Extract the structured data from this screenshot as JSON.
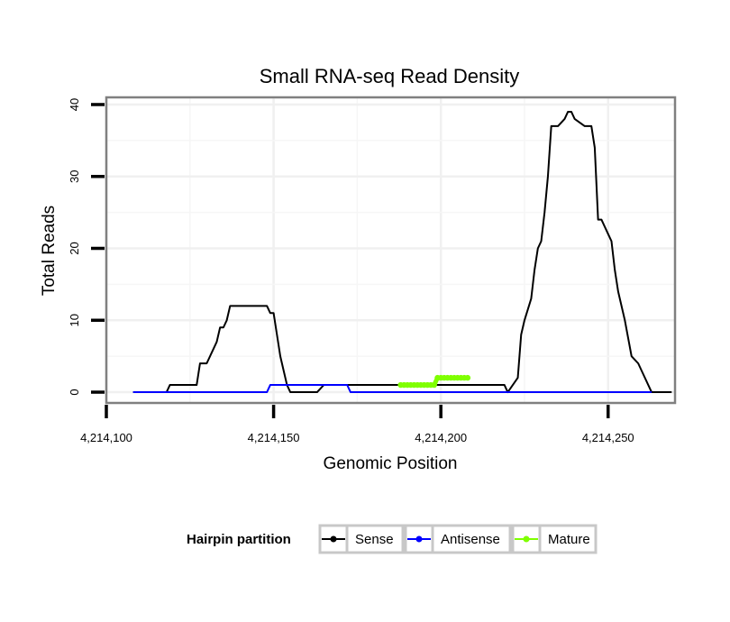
{
  "chart_data": {
    "type": "line",
    "title": "Small RNA-seq Read Density",
    "xlabel": "Genomic Position",
    "ylabel": "Total Reads",
    "xlim": [
      4214100,
      4214270
    ],
    "ylim": [
      -1.5,
      41
    ],
    "x_ticks": [
      4214100,
      4214150,
      4214200,
      4214250
    ],
    "x_tick_labels": [
      "4,214,100",
      "4,214,150",
      "4,214,200",
      "4,214,250"
    ],
    "y_ticks": [
      0,
      10,
      20,
      30,
      40
    ],
    "y_tick_labels": [
      "0",
      "10",
      "20",
      "30",
      "40"
    ],
    "grid": true,
    "legend": {
      "title": "Hairpin partition",
      "position": "bottom",
      "entries": [
        "Sense",
        "Antisense",
        "Mature"
      ]
    },
    "series": [
      {
        "name": "Sense",
        "color": "#000000",
        "x": [
          4214108,
          4214118,
          4214119,
          4214121,
          4214127,
          4214128,
          4214130,
          4214132,
          4214133,
          4214134,
          4214135,
          4214136,
          4214137,
          4214140,
          4214145,
          4214148,
          4214149,
          4214150,
          4214151,
          4214152,
          4214153,
          4214154,
          4214155,
          4214157,
          4214163,
          4214165,
          4214171,
          4214173,
          4214188,
          4214199,
          4214208,
          4214209,
          4214219,
          4214220,
          4214223,
          4214224,
          4214225,
          4214227,
          4214228,
          4214229,
          4214230,
          4214231,
          4214232,
          4214233,
          4214235,
          4214237,
          4214238,
          4214239,
          4214240,
          4214243,
          4214245,
          4214246,
          4214247,
          4214248,
          4214250,
          4214251,
          4214252,
          4214253,
          4214255,
          4214257,
          4214259,
          4214260,
          4214263,
          4214269
        ],
        "values": [
          0,
          0,
          1,
          1,
          1,
          4,
          4,
          6,
          7,
          9,
          9,
          10,
          12,
          12,
          12,
          12,
          11,
          11,
          8,
          5,
          3,
          1,
          0,
          0,
          0,
          1,
          1,
          1,
          1,
          1,
          1,
          1,
          1,
          0,
          2,
          8,
          10,
          13,
          17,
          20,
          21,
          25,
          30,
          37,
          37,
          38,
          39,
          39,
          38,
          37,
          37,
          34,
          24,
          24,
          22,
          21,
          17,
          14,
          10,
          5,
          4,
          3,
          0,
          0
        ]
      },
      {
        "name": "Antisense",
        "color": "#0000ff",
        "x": [
          4214108,
          4214148,
          4214149,
          4214172,
          4214173,
          4214263
        ],
        "values": [
          0,
          0,
          1,
          1,
          0,
          0
        ]
      },
      {
        "name": "Mature",
        "color": "#7fff00",
        "x": [
          4214188,
          4214189,
          4214190,
          4214191,
          4214192,
          4214193,
          4214194,
          4214195,
          4214196,
          4214197,
          4214198,
          4214199,
          4214200,
          4214201,
          4214202,
          4214203,
          4214204,
          4214205,
          4214206,
          4214207,
          4214208
        ],
        "values": [
          1,
          1,
          1,
          1,
          1,
          1,
          1,
          1,
          1,
          1,
          1,
          2,
          2,
          2,
          2,
          2,
          2,
          2,
          2,
          2,
          2
        ]
      }
    ]
  }
}
